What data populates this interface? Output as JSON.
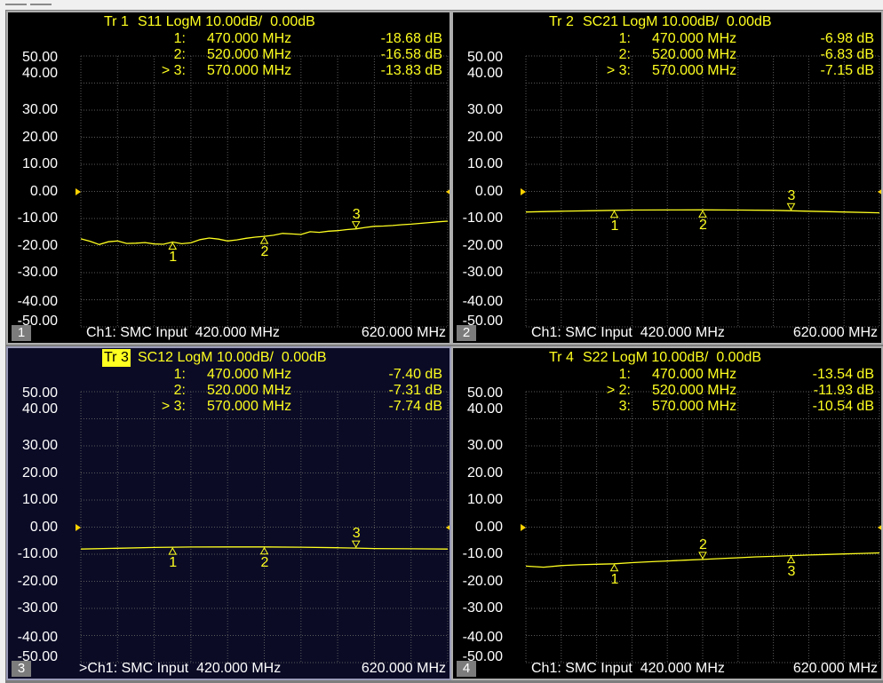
{
  "colors": {
    "trace": "#ffff20",
    "grid": "#5a5a5a",
    "panel_bg": "#000000",
    "active_bg": "#0b0b26",
    "ref_marker": "#ffd200"
  },
  "y_axis": {
    "ticks": [
      "50.00",
      "40.00",
      "30.00",
      "20.00",
      "10.00",
      "0.00",
      "-10.00",
      "-20.00",
      "-30.00",
      "-40.00",
      "-50.00"
    ],
    "range": [
      -50,
      50
    ],
    "scale_db_per_div": 10,
    "reference_db": 0
  },
  "x_axis": {
    "start_mhz": 420,
    "stop_mhz": 620
  },
  "traces": [
    {
      "number": "Tr 1",
      "title": "S11 LogM 10.00dB/  0.00dB",
      "active": false,
      "channel_box": "1",
      "footer_channel": "Ch1: SMC Input  420.000 MHz",
      "footer_stop": "620.000 MHz",
      "markers": [
        {
          "id": "1:",
          "freq": "470.000 MHz",
          "value": "-18.68 dB",
          "label": "1",
          "freq_mhz": 470,
          "db": -18.68
        },
        {
          "id": "2:",
          "freq": "520.000 MHz",
          "value": "-16.58 dB",
          "label": "2",
          "freq_mhz": 520,
          "db": -16.58
        },
        {
          "id": "> 3:",
          "freq": "570.000 MHz",
          "value": "-13.83 dB",
          "label": "3",
          "freq_mhz": 570,
          "db": -13.83
        }
      ],
      "chart_data": {
        "type": "line",
        "x": [
          420,
          425,
          430,
          435,
          440,
          445,
          450,
          455,
          460,
          465,
          470,
          475,
          480,
          485,
          490,
          495,
          500,
          505,
          510,
          515,
          520,
          525,
          530,
          535,
          540,
          545,
          550,
          555,
          560,
          565,
          570,
          575,
          580,
          585,
          590,
          595,
          600,
          605,
          610,
          615,
          620
        ],
        "y": [
          -17.5,
          -18.4,
          -19.6,
          -18.6,
          -18.3,
          -19.2,
          -19.1,
          -18.9,
          -19.4,
          -19.5,
          -18.68,
          -19.3,
          -19.0,
          -17.8,
          -17.2,
          -17.6,
          -18.3,
          -17.9,
          -17.3,
          -16.9,
          -16.58,
          -16.2,
          -15.5,
          -15.7,
          -15.9,
          -14.9,
          -15.1,
          -14.7,
          -14.5,
          -14.1,
          -13.83,
          -13.3,
          -12.9,
          -12.8,
          -12.6,
          -12.3,
          -12.1,
          -11.8,
          -11.5,
          -11.2,
          -11.0
        ],
        "xlim": [
          420,
          620
        ],
        "ylim": [
          -50,
          50
        ]
      }
    },
    {
      "number": "Tr 2",
      "title": "SC21 LogM 10.00dB/  0.00dB",
      "active": false,
      "channel_box": "2",
      "footer_channel": "Ch1: SMC Input  420.000 MHz",
      "footer_stop": "620.000 MHz",
      "markers": [
        {
          "id": "1:",
          "freq": "470.000 MHz",
          "value": "-6.98 dB",
          "label": "1",
          "freq_mhz": 470,
          "db": -6.98
        },
        {
          "id": "2:",
          "freq": "520.000 MHz",
          "value": "-6.83 dB",
          "label": "2",
          "freq_mhz": 520,
          "db": -6.83
        },
        {
          "id": "> 3:",
          "freq": "570.000 MHz",
          "value": "-7.15 dB",
          "label": "3",
          "freq_mhz": 570,
          "db": -7.15
        }
      ],
      "chart_data": {
        "type": "line",
        "x": [
          420,
          440,
          460,
          470,
          480,
          500,
          520,
          540,
          560,
          570,
          580,
          600,
          620
        ],
        "y": [
          -7.6,
          -7.3,
          -7.1,
          -6.98,
          -6.9,
          -6.85,
          -6.83,
          -6.9,
          -7.0,
          -7.15,
          -7.3,
          -7.6,
          -7.9
        ],
        "xlim": [
          420,
          620
        ],
        "ylim": [
          -50,
          50
        ]
      }
    },
    {
      "number": "Tr 3",
      "title": "SC12 LogM 10.00dB/  0.00dB",
      "active": true,
      "channel_box": "3",
      "footer_channel": ">Ch1: SMC Input  420.000 MHz",
      "footer_stop": "620.000 MHz",
      "markers": [
        {
          "id": "1:",
          "freq": "470.000 MHz",
          "value": "-7.40 dB",
          "label": "1",
          "freq_mhz": 470,
          "db": -7.4
        },
        {
          "id": "2:",
          "freq": "520.000 MHz",
          "value": "-7.31 dB",
          "label": "2",
          "freq_mhz": 520,
          "db": -7.31
        },
        {
          "id": "> 3:",
          "freq": "570.000 MHz",
          "value": "-7.74 dB",
          "label": "3",
          "freq_mhz": 570,
          "db": -7.74
        }
      ],
      "chart_data": {
        "type": "line",
        "x": [
          420,
          440,
          460,
          470,
          480,
          500,
          520,
          540,
          560,
          570,
          580,
          600,
          620
        ],
        "y": [
          -8.1,
          -7.8,
          -7.5,
          -7.4,
          -7.35,
          -7.3,
          -7.31,
          -7.4,
          -7.6,
          -7.74,
          -7.9,
          -8.0,
          -8.1
        ],
        "xlim": [
          420,
          620
        ],
        "ylim": [
          -50,
          50
        ]
      }
    },
    {
      "number": "Tr 4",
      "title": "S22 LogM 10.00dB/  0.00dB",
      "active": false,
      "channel_box": "4",
      "footer_channel": "Ch1: SMC Input  420.000 MHz",
      "footer_stop": "620.000 MHz",
      "markers": [
        {
          "id": "1:",
          "freq": "470.000 MHz",
          "value": "-13.54 dB",
          "label": "1",
          "freq_mhz": 470,
          "db": -13.54
        },
        {
          "id": "> 2:",
          "freq": "520.000 MHz",
          "value": "-11.93 dB",
          "label": "2",
          "freq_mhz": 520,
          "db": -11.93
        },
        {
          "id": "3:",
          "freq": "570.000 MHz",
          "value": "-10.54 dB",
          "label": "3",
          "freq_mhz": 570,
          "db": -10.54
        }
      ],
      "chart_data": {
        "type": "line",
        "x": [
          420,
          430,
          440,
          450,
          460,
          470,
          480,
          490,
          500,
          510,
          520,
          530,
          540,
          550,
          560,
          570,
          580,
          590,
          600,
          610,
          620
        ],
        "y": [
          -14.4,
          -14.8,
          -14.2,
          -13.9,
          -13.7,
          -13.54,
          -13.1,
          -12.8,
          -12.5,
          -12.2,
          -11.93,
          -11.6,
          -11.3,
          -11.0,
          -10.8,
          -10.54,
          -10.3,
          -10.1,
          -9.9,
          -9.7,
          -9.5
        ],
        "xlim": [
          420,
          620
        ],
        "ylim": [
          -50,
          50
        ]
      }
    }
  ]
}
